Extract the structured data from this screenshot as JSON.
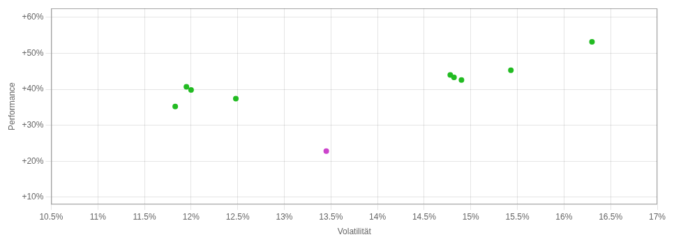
{
  "chart_data": {
    "type": "scatter",
    "xlabel": "Volatilität",
    "ylabel": "Performance",
    "xlim": [
      0.105,
      0.17
    ],
    "ylim": [
      0.08,
      0.625
    ],
    "xticks": [
      {
        "value": 0.105,
        "label": "10.5%"
      },
      {
        "value": 0.11,
        "label": "11%"
      },
      {
        "value": 0.115,
        "label": "11.5%"
      },
      {
        "value": 0.12,
        "label": "12%"
      },
      {
        "value": 0.125,
        "label": "12.5%"
      },
      {
        "value": 0.13,
        "label": "13%"
      },
      {
        "value": 0.135,
        "label": "13.5%"
      },
      {
        "value": 0.14,
        "label": "14%"
      },
      {
        "value": 0.145,
        "label": "14.5%"
      },
      {
        "value": 0.15,
        "label": "15%"
      },
      {
        "value": 0.155,
        "label": "15.5%"
      },
      {
        "value": 0.16,
        "label": "16%"
      },
      {
        "value": 0.165,
        "label": "16.5%"
      },
      {
        "value": 0.17,
        "label": "17%"
      }
    ],
    "yticks": [
      {
        "value": 0.1,
        "label": "+10%"
      },
      {
        "value": 0.2,
        "label": "+20%"
      },
      {
        "value": 0.3,
        "label": "+30%"
      },
      {
        "value": 0.4,
        "label": "+40%"
      },
      {
        "value": 0.5,
        "label": "+50%"
      },
      {
        "value": 0.6,
        "label": "+60%"
      }
    ],
    "grid": true,
    "series": [
      {
        "color": "#22bb22",
        "x": [
          0.1195,
          0.12,
          0.1183,
          0.1248,
          0.1478,
          0.1482,
          0.149,
          0.1543,
          0.163
        ],
        "values": [
          0.407,
          0.398,
          0.352,
          0.374,
          0.44,
          0.433,
          0.426,
          0.453,
          0.532
        ]
      },
      {
        "color": "#cc44cc",
        "x": [
          0.1345
        ],
        "values": [
          0.228
        ]
      }
    ]
  }
}
